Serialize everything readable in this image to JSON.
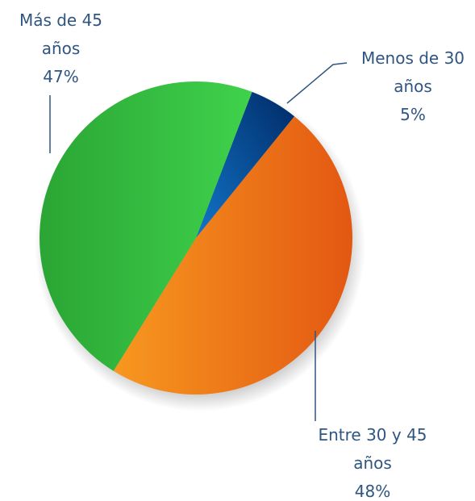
{
  "chart_data": {
    "type": "pie",
    "categories": [
      "Menos de 30 años",
      "Entre 30 y 45 años",
      "Más de 45 años"
    ],
    "values": [
      5,
      48,
      47
    ],
    "value_labels": [
      "5%",
      "48%",
      "47%"
    ],
    "colors": [
      "#0a4f9e",
      "#ee7a1a",
      "#35b841"
    ]
  }
}
